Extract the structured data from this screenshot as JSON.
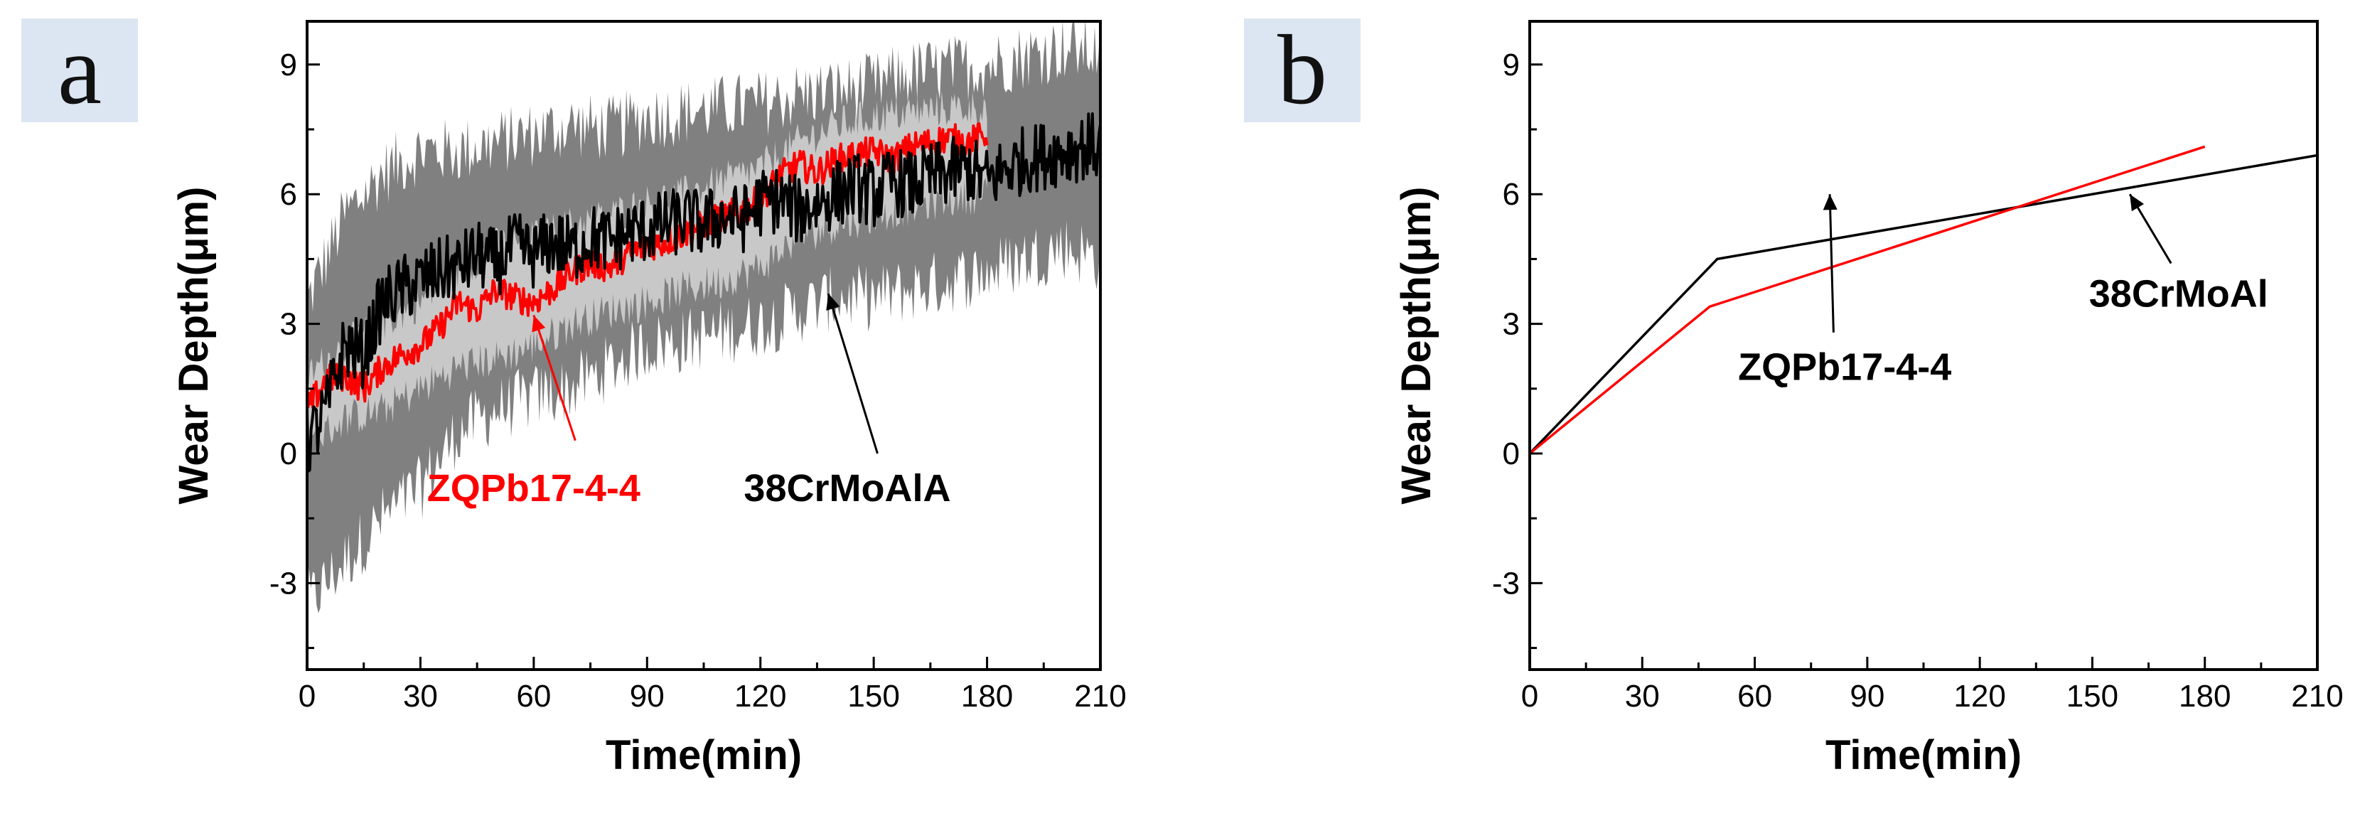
{
  "colors": {
    "red": "#ff0000",
    "black": "#000000",
    "band_dark": "#808080",
    "band_light": "#c8c8c8",
    "label_box": "#dce6f2"
  },
  "chart_data": [
    {
      "panel_label": "a",
      "type": "line",
      "xlabel": "Time(min)",
      "ylabel": "Wear Depth(μm)",
      "xlim": [
        0,
        210
      ],
      "ylim": [
        -5,
        10
      ],
      "xticks": [
        0,
        30,
        60,
        90,
        120,
        150,
        180,
        210
      ],
      "yticks": [
        -3,
        0,
        3,
        6,
        9
      ],
      "grid": false,
      "series": [
        {
          "name": "ZQPb17-4-4",
          "color": "#ff0000",
          "x": [
            0,
            5,
            10,
            15,
            20,
            25,
            30,
            35,
            40,
            45,
            50,
            55,
            60,
            65,
            70,
            75,
            80,
            85,
            90,
            95,
            100,
            105,
            110,
            115,
            120,
            125,
            130,
            135,
            140,
            145,
            150,
            155,
            160,
            165,
            170,
            175,
            180
          ],
          "y": [
            1.0,
            1.7,
            1.8,
            1.5,
            2.0,
            2.3,
            2.5,
            2.9,
            3.5,
            3.3,
            3.8,
            3.6,
            3.5,
            3.8,
            4.2,
            4.4,
            4.3,
            4.6,
            4.8,
            4.9,
            5.1,
            5.3,
            5.5,
            5.6,
            5.9,
            6.4,
            6.7,
            6.5,
            6.8,
            6.9,
            7.0,
            6.8,
            7.1,
            7.2,
            7.3,
            7.2,
            7.4
          ]
        },
        {
          "name": "38CrMoAlA",
          "color": "#000000",
          "x": [
            0,
            5,
            10,
            15,
            20,
            25,
            30,
            35,
            40,
            45,
            50,
            55,
            60,
            65,
            70,
            75,
            80,
            85,
            90,
            95,
            100,
            105,
            110,
            115,
            120,
            125,
            130,
            135,
            140,
            145,
            150,
            155,
            160,
            165,
            170,
            175,
            180,
            185,
            190,
            195,
            200,
            205,
            210
          ],
          "y": [
            0.2,
            1.0,
            2.5,
            2.3,
            3.5,
            3.8,
            4.0,
            4.2,
            4.3,
            4.6,
            4.4,
            4.8,
            4.6,
            4.9,
            4.7,
            5.0,
            4.9,
            5.1,
            5.2,
            5.3,
            5.4,
            5.3,
            5.5,
            5.4,
            5.8,
            5.9,
            5.6,
            5.8,
            6.0,
            6.2,
            6.0,
            6.3,
            6.2,
            6.4,
            6.5,
            6.6,
            6.3,
            6.6,
            6.8,
            6.9,
            7.0,
            7.1,
            7.1
          ]
        }
      ],
      "bands": [
        {
          "color": "#808080",
          "x": [
            0,
            10,
            20,
            30,
            40,
            50,
            60,
            70,
            80,
            90,
            100,
            110,
            120,
            130,
            140,
            150,
            160,
            170,
            180,
            190,
            200,
            210
          ],
          "upper": [
            3.5,
            5.5,
            6.5,
            7.0,
            7.0,
            7.2,
            7.4,
            7.6,
            7.5,
            7.8,
            7.9,
            8.0,
            8.1,
            8.3,
            8.4,
            8.5,
            8.8,
            8.9,
            9.0,
            9.2,
            9.4,
            9.3
          ],
          "lower": [
            -3.5,
            -2.5,
            -1.5,
            -0.8,
            0.5,
            1.0,
            1.3,
            1.5,
            2.0,
            2.5,
            2.6,
            2.8,
            3.0,
            3.3,
            3.6,
            3.6,
            3.8,
            4.0,
            4.2,
            4.5,
            4.8,
            4.5
          ]
        },
        {
          "color": "#c8c8c8",
          "x": [
            0,
            10,
            20,
            30,
            40,
            50,
            60,
            70,
            80,
            90,
            100,
            110,
            120,
            130,
            140,
            150,
            160,
            170,
            180
          ],
          "upper": [
            1.8,
            2.5,
            3.0,
            3.5,
            4.2,
            4.8,
            5.0,
            5.3,
            5.5,
            5.8,
            6.0,
            6.3,
            6.6,
            7.2,
            7.6,
            7.8,
            7.9,
            8.0,
            8.0
          ],
          "lower": [
            0.2,
            0.8,
            1.0,
            1.5,
            2.0,
            2.2,
            2.5,
            3.0,
            3.3,
            3.5,
            3.8,
            4.0,
            4.3,
            5.0,
            5.3,
            5.5,
            5.7,
            5.9,
            6.0
          ]
        }
      ],
      "annotations": [
        {
          "text": "ZQPb17-4-4",
          "color": "#ff0000",
          "text_x": 60,
          "text_y": -1.1,
          "arrow_from": [
            71,
            0.3
          ],
          "arrow_to": [
            60,
            3.2
          ]
        },
        {
          "text": "38CrMoAlA",
          "color": "#000000",
          "text_x": 143,
          "text_y": -1.1,
          "arrow_from": [
            151,
            0.0
          ],
          "arrow_to": [
            138,
            3.7
          ]
        }
      ]
    },
    {
      "panel_label": "b",
      "type": "line",
      "xlabel": "Time(min)",
      "ylabel": "Wear Depth(μm)",
      "xlim": [
        0,
        210
      ],
      "ylim": [
        -5,
        10
      ],
      "xticks": [
        0,
        30,
        60,
        90,
        120,
        150,
        180,
        210
      ],
      "yticks": [
        -3,
        0,
        3,
        6,
        9
      ],
      "grid": false,
      "series": [
        {
          "name": "38CrMoAl",
          "color": "#000000",
          "x": [
            0,
            50,
            210
          ],
          "y": [
            0,
            4.5,
            6.9
          ]
        },
        {
          "name": "ZQPb17-4-4",
          "color": "#ff0000",
          "x": [
            0,
            48,
            180
          ],
          "y": [
            0,
            3.4,
            7.1
          ]
        }
      ],
      "annotations": [
        {
          "text": "38CrMoAl",
          "color": "#000000",
          "text_x": 173,
          "text_y": 3.4,
          "arrow_from": [
            171,
            4.4
          ],
          "arrow_to": [
            160,
            6.0
          ]
        },
        {
          "text": "ZQPb17-4-4",
          "color": "#000000",
          "text_x": 84,
          "text_y": 1.7,
          "arrow_from": [
            81,
            2.8
          ],
          "arrow_to": [
            80,
            6.0
          ]
        }
      ]
    }
  ]
}
